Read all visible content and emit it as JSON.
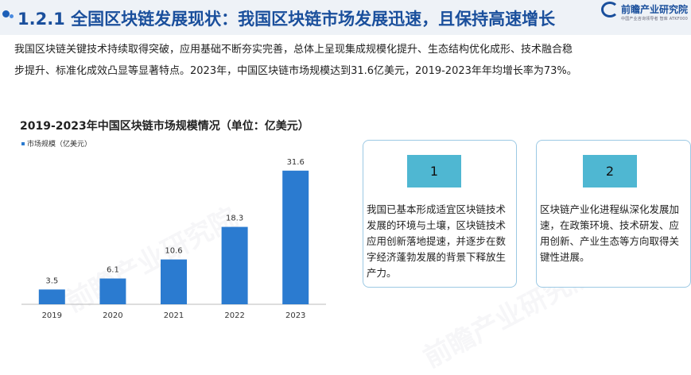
{
  "header": {
    "title": "1.2.1 全国区块链发展现状：我国区块链市场发展迅速，且保持高速增长",
    "logo_text": "前瞻产业研究院",
    "logo_sub": "中国产业咨询领导者 智库 ATKF000"
  },
  "intro": {
    "line1": "我国区块链关键技术持续取得突破，应用基础不断夯实完善，总体上呈现集成规模化提升、生态结构优化成形、技术融合稳",
    "line2": "步提升、标准化成效凸显等显著特点。2023年，中国区块链市场规模达到31.6亿美元，2019-2023年年均增长率为73%。"
  },
  "chart_data": {
    "type": "bar",
    "title": "2019-2023年中国区块链市场规模情况（单位：亿美元）",
    "legend": "市场规模（亿美元）",
    "categories": [
      "2019",
      "2020",
      "2021",
      "2022",
      "2023"
    ],
    "series": [
      {
        "name": "市场规模（亿美元）",
        "values": [
          3.5,
          6.1,
          10.6,
          18.3,
          31.6
        ]
      }
    ],
    "value_labels": [
      "3.5",
      "6.1",
      "10.6",
      "18.3",
      "31.6"
    ],
    "ylim": [
      0,
      34
    ],
    "grid": false,
    "legend_position": "top-left",
    "bar_color": "#2b7bd0"
  },
  "cards": [
    {
      "number": "1",
      "text": "我国已基本形成适宜区块链技术发展的环境与土壤，区块链技术应用创新落地提速，并逐步在数字经济蓬勃发展的背景下释放生产力。"
    },
    {
      "number": "2",
      "text": "区块链产业化进程纵深化发展加速，在政策环境、技术研发、应用创新、产业生态等方向取得关键性进展。"
    }
  ],
  "colors": {
    "title": "#1a4f9c",
    "bar": "#2b7bd0",
    "badge": "#4fb7d2",
    "card_border": "#9cc9e4"
  }
}
